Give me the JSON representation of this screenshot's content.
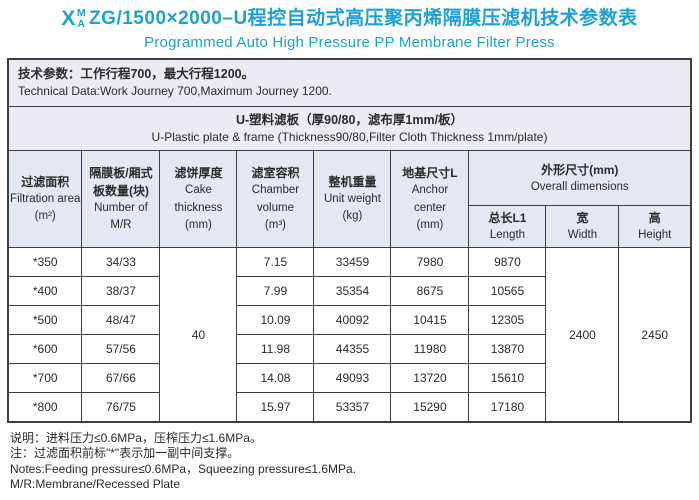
{
  "colors": {
    "accent": "#1f9fd8",
    "border": "#3f3f3f",
    "box_bg": "#ebebf5",
    "header_bg": "#e3e8f4"
  },
  "title": {
    "x": "X",
    "sup": "M",
    "sub": "A",
    "model": "ZG/1500×2000–U",
    "cn": "程控自动式高压聚丙烯隔膜压滤机技术参数表",
    "en": "Programmed Auto High Pressure PP Membrane Filter Press"
  },
  "tech_box": {
    "cn": "技术参数：工作行程700，最大行程1200。",
    "en": "Technical Data:Work Journey 700,Maximum Journey 1200."
  },
  "section": {
    "cn": "U-塑料滤板（厚90/80，滤布厚1mm/板）",
    "en": "U-Plastic plate & frame (Thickness90/80,Filter Cloth Thickness 1mm/plate)"
  },
  "headers": {
    "filtration_area": {
      "cn": "过滤面积",
      "en": "Filtration area\n(m²)"
    },
    "plate_count": {
      "cn": "隔膜板/厢式\n板数量(块)",
      "en": "Number of\nM/R"
    },
    "cake_thickness": {
      "cn": "滤饼厚度",
      "en": "Cake\nthickness\n(mm)"
    },
    "chamber_volume": {
      "cn": "滤室容积",
      "en": "Chamber\nvolume\n(m³)"
    },
    "unit_weight": {
      "cn": "整机重量",
      "en": "Unit weight\n(kg)"
    },
    "anchor_center": {
      "cn": "地基尺寸L",
      "en": "Anchor\ncenter\n(mm)"
    },
    "overall_dims": {
      "cn": "外形尺寸(mm)",
      "en": "Overall  dimensions"
    },
    "length": {
      "cn": "总长L1",
      "en": "Length"
    },
    "width": {
      "cn": "宽",
      "en": "Width"
    },
    "height": {
      "cn": "高",
      "en": "Height"
    }
  },
  "merged": {
    "cake_thickness": "40",
    "width": "2400",
    "height": "2450"
  },
  "rows": [
    {
      "area": "*350",
      "plates": "34/33",
      "volume": "7.15",
      "weight": "33459",
      "anchor": "7980",
      "length": "9870"
    },
    {
      "area": "*400",
      "plates": "38/37",
      "volume": "7.99",
      "weight": "35354",
      "anchor": "8675",
      "length": "10565"
    },
    {
      "area": "*500",
      "plates": "48/47",
      "volume": "10.09",
      "weight": "40092",
      "anchor": "10415",
      "length": "12305"
    },
    {
      "area": "*600",
      "plates": "57/56",
      "volume": "11.98",
      "weight": "44355",
      "anchor": "11980",
      "length": "13870"
    },
    {
      "area": "*700",
      "plates": "67/66",
      "volume": "14.08",
      "weight": "49093",
      "anchor": "13720",
      "length": "15610"
    },
    {
      "area": "*800",
      "plates": "76/75",
      "volume": "15.97",
      "weight": "53357",
      "anchor": "15290",
      "length": "17180"
    }
  ],
  "notes": {
    "line1": "说明：进料压力≤0.6MPa，压榨压力≤1.6MPa。",
    "line2": "注：过滤面积前标\"*\"表示加一副中间支撑。",
    "line3": "Notes:Feeding pressure≤0.6MPa，Squeezing pressure≤1.6MPa.",
    "line4": "M/R:Membrane/Recessed Plate"
  }
}
